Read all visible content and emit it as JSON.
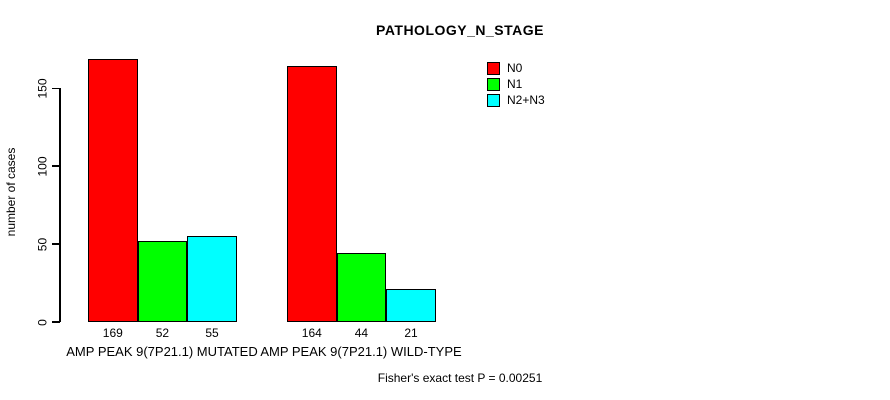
{
  "title": "PATHOLOGY_N_STAGE",
  "footer": {
    "stat_text": "Fisher's exact test P = 0.00251"
  },
  "chart_data": {
    "type": "bar",
    "title": "PATHOLOGY_N_STAGE",
    "xlabel": "",
    "ylabel": "number of cases",
    "categories": [
      "AMP PEAK 9(7P21.1) MUTATED",
      "AMP PEAK 9(7P21.1) WILD-TYPE"
    ],
    "series": [
      {
        "name": "N0",
        "color": "#FF0000",
        "values": [
          169,
          164
        ]
      },
      {
        "name": "N1",
        "color": "#00FF00",
        "values": [
          52,
          44
        ]
      },
      {
        "name": "N2+N3",
        "color": "#00FFFF",
        "values": [
          55,
          21
        ]
      }
    ],
    "yticks": [
      0,
      50,
      100,
      150
    ],
    "ylim": [
      0,
      169
    ],
    "grid": false,
    "legend_position": "top-right",
    "bar_value_labels_shown": true,
    "annotation": "Fisher's exact test P = 0.00251"
  }
}
